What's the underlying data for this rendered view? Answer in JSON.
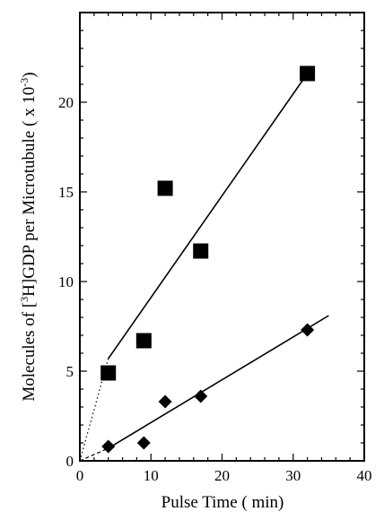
{
  "chart_data": {
    "type": "scatter",
    "xlabel": "Pulse Time  ( min)",
    "ylabel": {
      "prefix": "Molecules of [",
      "sup1": "3",
      "mid": "H]GDP per Microtubule ( x 10",
      "sup2": "-3",
      "suffix": ")"
    },
    "xlim": [
      0,
      40
    ],
    "ylim": [
      0,
      25
    ],
    "x_ticks": [
      0,
      10,
      20,
      30,
      40
    ],
    "y_ticks": [
      0,
      5,
      10,
      15,
      20
    ],
    "grid": false,
    "series": [
      {
        "marker": "square",
        "x": [
          4,
          9,
          12,
          17,
          32
        ],
        "y": [
          4.9,
          6.7,
          15.2,
          11.7,
          21.6
        ],
        "fit_line": {
          "x": [
            4,
            32
          ],
          "y": [
            5.7,
            21.6
          ]
        },
        "extrapolation": {
          "x": [
            0,
            4
          ],
          "y": [
            0,
            5.7
          ],
          "style": "dotted"
        }
      },
      {
        "marker": "diamond",
        "x": [
          4,
          9,
          12,
          17,
          32
        ],
        "y": [
          0.8,
          1.0,
          3.3,
          3.6,
          7.3
        ],
        "fit_line": {
          "x": [
            4,
            35
          ],
          "y": [
            0.7,
            8.1
          ]
        },
        "extrapolation": {
          "x": [
            0,
            4
          ],
          "y": [
            0,
            0.7
          ],
          "style": "dashed"
        }
      }
    ]
  }
}
